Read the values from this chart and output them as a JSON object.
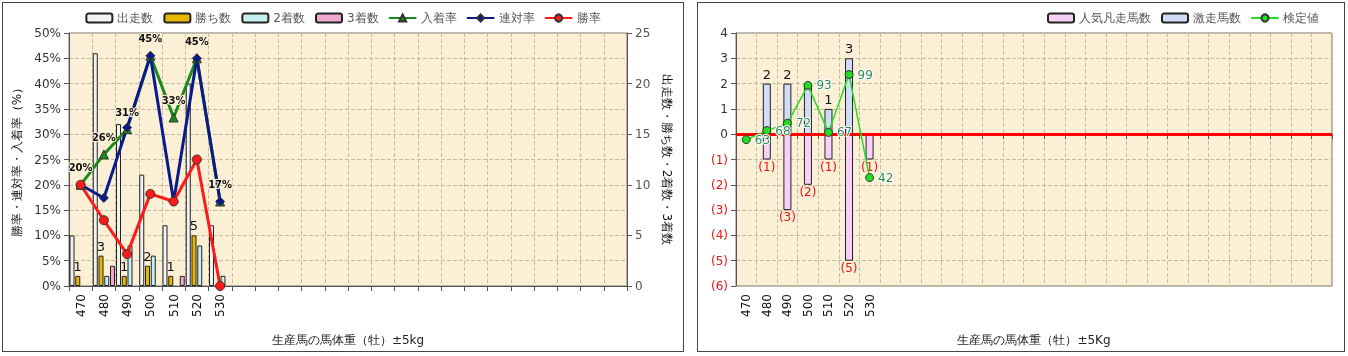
{
  "chart_data": [
    {
      "type": "bar",
      "xlabel": "生産馬の馬体重（牡）±5kg",
      "ylabel": "勝率・連対率・入着率（%）",
      "y2label": "出走数・勝ち数・2着数・3着数",
      "categories": [
        "470",
        "480",
        "490",
        "500",
        "510",
        "520",
        "530",
        null,
        null,
        null,
        null,
        null,
        null,
        null,
        null,
        null,
        null,
        null,
        null,
        null,
        null,
        null,
        null,
        null
      ],
      "ylim": [
        0,
        50
      ],
      "yticks": [
        {
          "value": 0,
          "label": "0%"
        },
        {
          "value": 5,
          "label": "5%"
        },
        {
          "value": 10,
          "label": "10%"
        },
        {
          "value": 15,
          "label": "15%"
        },
        {
          "value": 20,
          "label": "20%"
        },
        {
          "value": 25,
          "label": "25%"
        },
        {
          "value": 30,
          "label": "30%"
        },
        {
          "value": 35,
          "label": "35%"
        },
        {
          "value": 40,
          "label": "40%"
        },
        {
          "value": 45,
          "label": "45%"
        },
        {
          "value": 50,
          "label": "50%"
        }
      ],
      "y2lim": [
        0,
        25
      ],
      "y2ticks": [
        0,
        5,
        10,
        15,
        20,
        25
      ],
      "grid": true,
      "legend": "top",
      "series": [
        {
          "name": "出走数",
          "axis": "y2",
          "color": "#f2f2f2",
          "values": [
            5,
            23,
            16,
            11,
            6,
            20,
            6,
            null,
            null,
            null,
            null,
            null,
            null,
            null,
            null,
            null,
            null,
            null,
            null,
            null,
            null,
            null,
            null,
            null
          ]
        },
        {
          "name": "勝ち数",
          "axis": "y2",
          "color": "#e8b800",
          "values": [
            1,
            3,
            1,
            2,
            1,
            5,
            null,
            null,
            null,
            null,
            null,
            null,
            null,
            null,
            null,
            null,
            null,
            null,
            null,
            null,
            null,
            null,
            null,
            null
          ],
          "value_labels": [
            "1",
            "3",
            "1",
            "2",
            "1",
            "5",
            null,
            null,
            null,
            null,
            null,
            null,
            null,
            null,
            null,
            null,
            null,
            null,
            null,
            null,
            null,
            null,
            null,
            null
          ]
        },
        {
          "name": "2着数",
          "axis": "y2",
          "color": "#c4f0f0",
          "values": [
            null,
            1,
            4,
            3,
            null,
            4,
            1,
            null,
            null,
            null,
            null,
            null,
            null,
            null,
            null,
            null,
            null,
            null,
            null,
            null,
            null,
            null,
            null,
            null
          ]
        },
        {
          "name": "3着数",
          "axis": "y2",
          "color": "#f0a8d0",
          "values": [
            null,
            2,
            null,
            null,
            1,
            null,
            null,
            null,
            null,
            null,
            null,
            null,
            null,
            null,
            null,
            null,
            null,
            null,
            null,
            null,
            null,
            null,
            null,
            null
          ]
        },
        {
          "name": "入着率",
          "type": "line",
          "marker": "triangle",
          "color": "#1a8a1a",
          "values": [
            20,
            26,
            31,
            45.5,
            33.3,
            45,
            16.7,
            null,
            null,
            null,
            null,
            null,
            null,
            null,
            null,
            null,
            null,
            null,
            null,
            null,
            null,
            null,
            null,
            null
          ],
          "value_labels": [
            "20%",
            "26%",
            "31%",
            "45%",
            "33%",
            "45%",
            "17%",
            null,
            null,
            null,
            null,
            null,
            null,
            null,
            null,
            null,
            null,
            null,
            null,
            null,
            null,
            null,
            null,
            null
          ]
        },
        {
          "name": "連対率",
          "type": "line",
          "marker": "diamond",
          "color": "#0a1a8a",
          "values": [
            20,
            17.4,
            31.3,
            45.5,
            16.7,
            45,
            16.7,
            null,
            null,
            null,
            null,
            null,
            null,
            null,
            null,
            null,
            null,
            null,
            null,
            null,
            null,
            null,
            null,
            null
          ]
        },
        {
          "name": "勝率",
          "type": "line",
          "marker": "circle",
          "color": "#ff1a1a",
          "values": [
            20,
            13,
            6.3,
            18.2,
            16.7,
            25,
            0,
            null,
            null,
            null,
            null,
            null,
            null,
            null,
            null,
            null,
            null,
            null,
            null,
            null,
            null,
            null,
            null,
            null
          ]
        }
      ]
    },
    {
      "type": "bar",
      "xlabel": "生産馬の馬体重（牡）±5Kg",
      "stacked": true,
      "categories": [
        "470",
        "480",
        "490",
        "500",
        "510",
        "520",
        "530",
        null,
        null,
        null,
        null,
        null,
        null,
        null,
        null,
        null,
        null,
        null,
        null,
        null,
        null,
        null,
        null,
        null,
        null,
        null,
        null,
        null,
        null
      ],
      "ylim": [
        -6,
        4
      ],
      "yticks": [
        4,
        3,
        2,
        1,
        0,
        {
          "value": -1,
          "label": "(1)"
        },
        {
          "value": -2,
          "label": "(2)"
        },
        {
          "value": -3,
          "label": "(3)"
        },
        {
          "value": -4,
          "label": "(4)"
        },
        {
          "value": -5,
          "label": "(5)"
        },
        {
          "value": -6,
          "label": "(6)"
        }
      ],
      "y2lim": [
        -18,
        122
      ],
      "grid": true,
      "legend": "top right",
      "ref_lines": [
        {
          "axis": "y",
          "value": 0,
          "color": "#ff0000"
        }
      ],
      "series": [
        {
          "name": "人気凡走馬数",
          "color": "#f8d0f8",
          "values": [
            null,
            -1,
            -3,
            -2,
            -1,
            -5,
            -1,
            null,
            null,
            null,
            null,
            null,
            null,
            null,
            null,
            null,
            null,
            null,
            null,
            null,
            null,
            null,
            null,
            null,
            null,
            null,
            null,
            null,
            null
          ],
          "value_labels": [
            null,
            "(1)",
            "(3)",
            "(2)",
            "(1)",
            "(5)",
            "(1)",
            null,
            null,
            null,
            null,
            null,
            null,
            null,
            null,
            null,
            null,
            null,
            null,
            null,
            null,
            null,
            null,
            null,
            null,
            null,
            null,
            null,
            null
          ]
        },
        {
          "name": "激走馬数",
          "color": "#d0dcf8",
          "values": [
            null,
            2,
            2,
            2,
            1,
            3,
            null,
            null,
            null,
            null,
            null,
            null,
            null,
            null,
            null,
            null,
            null,
            null,
            null,
            null,
            null,
            null,
            null,
            null,
            null,
            null,
            null,
            null,
            null
          ],
          "value_labels": [
            null,
            "2",
            "2",
            null,
            "1",
            "3",
            null,
            null,
            null,
            null,
            null,
            null,
            null,
            null,
            null,
            null,
            null,
            null,
            null,
            null,
            null,
            null,
            null,
            null,
            null,
            null,
            null,
            null,
            null
          ]
        },
        {
          "name": "検定値",
          "type": "line",
          "axis": "y2",
          "marker": "circle",
          "color": "#22dd22",
          "values": [
            63,
            68,
            72,
            93,
            67,
            99,
            42,
            null,
            null,
            null,
            null,
            null,
            null,
            null,
            null,
            null,
            null,
            null,
            null,
            null,
            null,
            null,
            null,
            null,
            null,
            null,
            null,
            null,
            null
          ],
          "value_labels": [
            "63",
            "68",
            "72",
            "93",
            "67",
            "99",
            "42",
            null,
            null,
            null,
            null,
            null,
            null,
            null,
            null,
            null,
            null,
            null,
            null,
            null,
            null,
            null,
            null,
            null,
            null,
            null,
            null,
            null,
            null
          ]
        }
      ]
    }
  ]
}
